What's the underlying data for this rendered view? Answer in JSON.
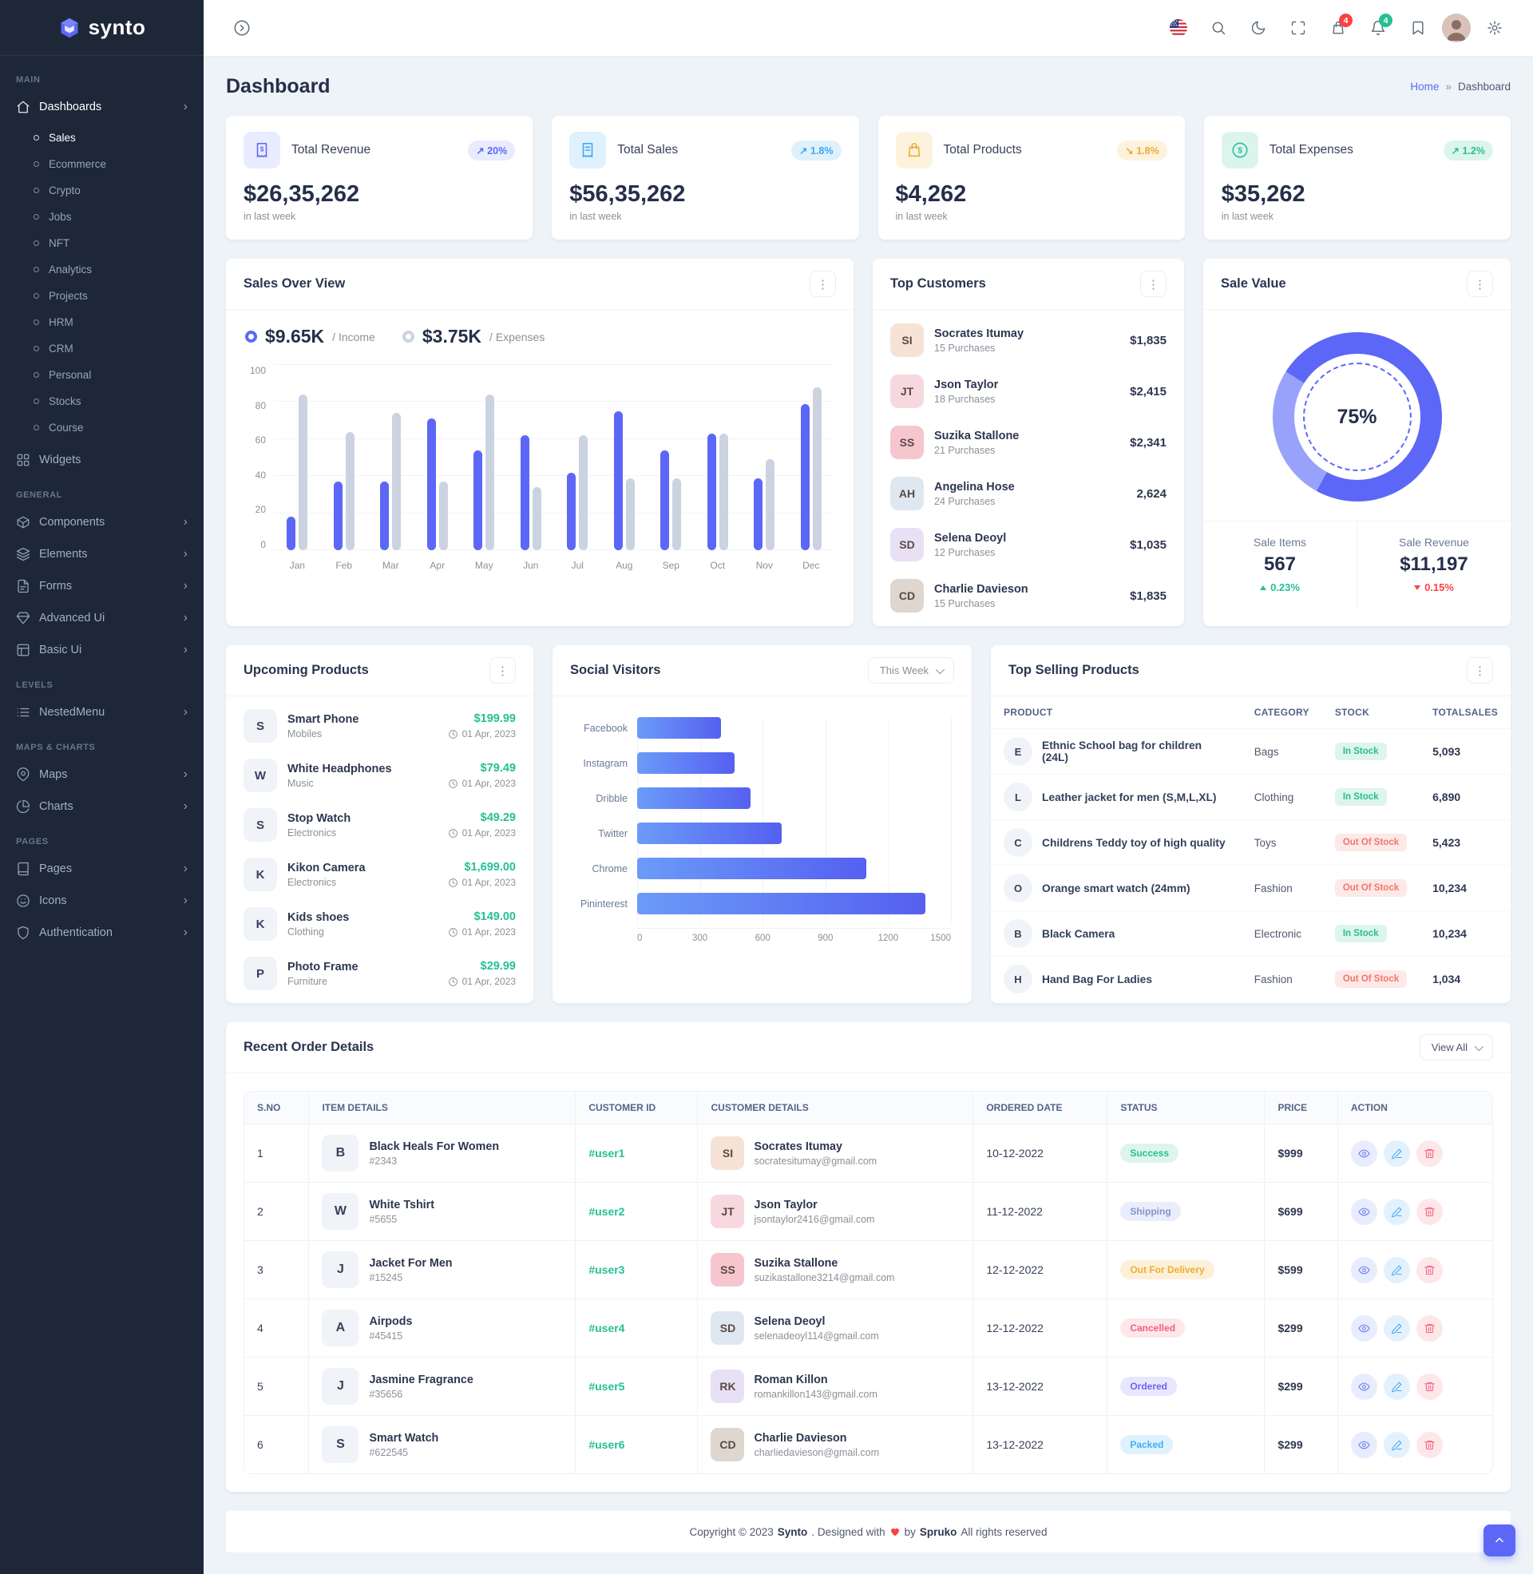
{
  "brand": {
    "name": "synto"
  },
  "topbar": {
    "cart_badge": "4",
    "notification_badge": "4"
  },
  "sidebar": {
    "sections": [
      {
        "label": "MAIN",
        "items": [
          {
            "label": "Dashboards",
            "icon": "home",
            "chevron": true,
            "active": true,
            "children": [
              {
                "label": "Sales",
                "active": true
              },
              {
                "label": "Ecommerce"
              },
              {
                "label": "Crypto"
              },
              {
                "label": "Jobs"
              },
              {
                "label": "NFT"
              },
              {
                "label": "Analytics"
              },
              {
                "label": "Projects"
              },
              {
                "label": "HRM"
              },
              {
                "label": "CRM"
              },
              {
                "label": "Personal"
              },
              {
                "label": "Stocks"
              },
              {
                "label": "Course"
              }
            ]
          },
          {
            "label": "Widgets",
            "icon": "widgets"
          }
        ]
      },
      {
        "label": "GENERAL",
        "items": [
          {
            "label": "Components",
            "icon": "components",
            "chevron": true
          },
          {
            "label": "Elements",
            "icon": "elements",
            "chevron": true
          },
          {
            "label": "Forms",
            "icon": "forms",
            "chevron": true
          },
          {
            "label": "Advanced Ui",
            "icon": "advanced",
            "chevron": true
          },
          {
            "label": "Basic Ui",
            "icon": "basic",
            "chevron": true
          }
        ]
      },
      {
        "label": "LEVELS",
        "items": [
          {
            "label": "NestedMenu",
            "icon": "nested",
            "chevron": true
          }
        ]
      },
      {
        "label": "MAPS & CHARTS",
        "items": [
          {
            "label": "Maps",
            "icon": "maps",
            "chevron": true
          },
          {
            "label": "Charts",
            "icon": "charts",
            "chevron": true
          }
        ]
      },
      {
        "label": "PAGES",
        "items": [
          {
            "label": "Pages",
            "icon": "pages",
            "chevron": true
          },
          {
            "label": "Icons",
            "icon": "icons",
            "chevron": true
          },
          {
            "label": "Authentication",
            "icon": "auth",
            "chevron": true
          }
        ]
      }
    ]
  },
  "page": {
    "title": "Dashboard",
    "breadcrumb_home": "Home",
    "breadcrumb_sep": "»",
    "breadcrumb_current": "Dashboard"
  },
  "stats": [
    {
      "title": "Total Revenue",
      "value": "$26,35,262",
      "caption": "in last week",
      "change": "20%",
      "trend": "up",
      "tone": "primary",
      "icon": "invoice"
    },
    {
      "title": "Total Sales",
      "value": "$56,35,262",
      "caption": "in last week",
      "change": "1.8%",
      "trend": "up",
      "tone": "info",
      "icon": "receipt"
    },
    {
      "title": "Total Products",
      "value": "$4,262",
      "caption": "in last week",
      "change": "1.8%",
      "trend": "down",
      "tone": "warning",
      "icon": "bag"
    },
    {
      "title": "Total Expenses",
      "value": "$35,262",
      "caption": "in last week",
      "change": "1.2%",
      "trend": "up",
      "tone": "success",
      "icon": "dollar"
    }
  ],
  "sales_overview": {
    "title": "Sales Over View",
    "legend": [
      {
        "value": "$9.65K",
        "label": "/ Income",
        "tone": "primary"
      },
      {
        "value": "$3.75K",
        "label": "/ Expenses",
        "tone": "muted"
      }
    ],
    "chart_data": {
      "type": "bar",
      "categories": [
        "Jan",
        "Feb",
        "Mar",
        "Apr",
        "May",
        "Jun",
        "Jul",
        "Aug",
        "Sep",
        "Oct",
        "Nov",
        "Dec"
      ],
      "series": [
        {
          "name": "Income",
          "color": "#5c67f7",
          "values": [
            18,
            37,
            37,
            71,
            54,
            62,
            42,
            75,
            54,
            63,
            39,
            79
          ]
        },
        {
          "name": "Expenses",
          "color": "#ccd3e0",
          "values": [
            84,
            64,
            74,
            37,
            84,
            34,
            62,
            39,
            39,
            63,
            49,
            88
          ]
        }
      ],
      "ylim": [
        0,
        100
      ],
      "yticks": [
        0,
        20,
        40,
        60,
        80,
        100
      ],
      "grid": true,
      "legend_position": "top"
    }
  },
  "top_customers": {
    "title": "Top Customers",
    "items": [
      {
        "name": "Socrates Itumay",
        "purchases": "15 Purchases",
        "amount": "$1,835"
      },
      {
        "name": "Json Taylor",
        "purchases": "18 Purchases",
        "amount": "$2,415"
      },
      {
        "name": "Suzika Stallone",
        "purchases": "21 Purchases",
        "amount": "$2,341"
      },
      {
        "name": "Angelina Hose",
        "purchases": "24 Purchases",
        "amount": "2,624"
      },
      {
        "name": "Selena Deoyl",
        "purchases": "12 Purchases",
        "amount": "$1,035"
      },
      {
        "name": "Charlie Davieson",
        "purchases": "15 Purchases",
        "amount": "$1,835"
      }
    ]
  },
  "sale_value": {
    "title": "Sale Value",
    "chart_data": {
      "type": "pie",
      "center_label": "75%",
      "segments": [
        {
          "from": 0,
          "to": 58,
          "color": "#5c67f7"
        },
        {
          "from": 58,
          "to": 84,
          "color": "#98a2fb"
        },
        {
          "from": 84,
          "to": 100,
          "color": "#5c67f7"
        }
      ]
    },
    "stats": [
      {
        "label": "Sale Items",
        "value": "567",
        "change": "0.23%",
        "dir": "up"
      },
      {
        "label": "Sale Revenue",
        "value": "$11,197",
        "change": "0.15%",
        "dir": "down"
      }
    ]
  },
  "upcoming_products": {
    "title": "Upcoming Products",
    "items": [
      {
        "name": "Smart Phone",
        "category": "Mobiles",
        "price": "$199.99",
        "date": "01 Apr, 2023"
      },
      {
        "name": "White Headphones",
        "category": "Music",
        "price": "$79.49",
        "date": "01 Apr, 2023"
      },
      {
        "name": "Stop Watch",
        "category": "Electronics",
        "price": "$49.29",
        "date": "01 Apr, 2023"
      },
      {
        "name": "Kikon Camera",
        "category": "Electronics",
        "price": "$1,699.00",
        "date": "01 Apr, 2023"
      },
      {
        "name": "Kids shoes",
        "category": "Clothing",
        "price": "$149.00",
        "date": "01 Apr, 2023"
      },
      {
        "name": "Photo Frame",
        "category": "Furniture",
        "price": "$29.99",
        "date": "01 Apr, 2023"
      }
    ]
  },
  "social_visitors": {
    "title": "Social Visitors",
    "filter": "This Week",
    "chart_data": {
      "type": "bar",
      "orientation": "horizontal",
      "categories": [
        "Facebook",
        "Instagram",
        "Dribble",
        "Twitter",
        "Chrome",
        "Pininterest"
      ],
      "values": [
        400,
        467,
        543,
        690,
        1095,
        1376
      ],
      "xlim": [
        0,
        1500
      ],
      "xticks": [
        0,
        300,
        600,
        900,
        1200,
        1500
      ],
      "bar_gradient": [
        "#6b9bf8",
        "#5560f0"
      ]
    }
  },
  "top_selling": {
    "title": "Top Selling Products",
    "columns": [
      "PRODUCT",
      "CATEGORY",
      "STOCK",
      "TOTALSALES"
    ],
    "rows": [
      {
        "product": "Ethnic School bag for children (24L)",
        "category": "Bags",
        "stock": "In Stock",
        "sales": "5,093"
      },
      {
        "product": "Leather jacket for men (S,M,L,XL)",
        "category": "Clothing",
        "stock": "In Stock",
        "sales": "6,890"
      },
      {
        "product": "Childrens Teddy toy of high quality",
        "category": "Toys",
        "stock": "Out Of Stock",
        "sales": "5,423"
      },
      {
        "product": "Orange smart watch (24mm)",
        "category": "Fashion",
        "stock": "Out Of Stock",
        "sales": "10,234"
      },
      {
        "product": "Black Camera",
        "category": "Electronic",
        "stock": "In Stock",
        "sales": "10,234"
      },
      {
        "product": "Hand Bag For Ladies",
        "category": "Fashion",
        "stock": "Out Of Stock",
        "sales": "1,034"
      }
    ]
  },
  "recent_orders": {
    "title": "Recent Order Details",
    "view_all": "View All",
    "columns": [
      "S.NO",
      "ITEM DETAILS",
      "CUSTOMER ID",
      "CUSTOMER DETAILS",
      "ORDERED DATE",
      "STATUS",
      "PRICE",
      "ACTION"
    ],
    "rows": [
      {
        "sno": "1",
        "item": "Black Heals For Women",
        "item_id": "#2343",
        "customer_id": "#user1",
        "customer": "Socrates Itumay",
        "email": "socratesitumay@gmail.com",
        "date": "10-12-2022",
        "status": "Success",
        "price": "$999"
      },
      {
        "sno": "2",
        "item": "White Tshirt",
        "item_id": "#5655",
        "customer_id": "#user2",
        "customer": "Json Taylor",
        "email": "jsontaylor2416@gmail.com",
        "date": "11-12-2022",
        "status": "Shipping",
        "price": "$699"
      },
      {
        "sno": "3",
        "item": "Jacket For Men",
        "item_id": "#15245",
        "customer_id": "#user3",
        "customer": "Suzika Stallone",
        "email": "suzikastallone3214@gmail.com",
        "date": "12-12-2022",
        "status": "Out For Delivery",
        "price": "$599"
      },
      {
        "sno": "4",
        "item": "Airpods",
        "item_id": "#45415",
        "customer_id": "#user4",
        "customer": "Selena Deoyl",
        "email": "selenadeoyl114@gmail.com",
        "date": "12-12-2022",
        "status": "Cancelled",
        "price": "$299"
      },
      {
        "sno": "5",
        "item": "Jasmine Fragrance",
        "item_id": "#35656",
        "customer_id": "#user5",
        "customer": "Roman Killon",
        "email": "romankillon143@gmail.com",
        "date": "13-12-2022",
        "status": "Ordered",
        "price": "$299"
      },
      {
        "sno": "6",
        "item": "Smart Watch",
        "item_id": "#622545",
        "customer_id": "#user6",
        "customer": "Charlie Davieson",
        "email": "charliedavieson@gmail.com",
        "date": "13-12-2022",
        "status": "Packed",
        "price": "$299"
      }
    ]
  },
  "footer": {
    "prefix": "Copyright © 2023",
    "brand": "Synto",
    "middle": ". Designed with",
    "by": "by",
    "designer": "Spruko",
    "suffix": "All rights reserved"
  },
  "colors": {
    "primary": "#5c67f7",
    "info": "#49b6f5",
    "success": "#26bf94",
    "warning": "#f5b849",
    "danger": "#f5627a",
    "bar_muted": "#ccd3e0"
  }
}
